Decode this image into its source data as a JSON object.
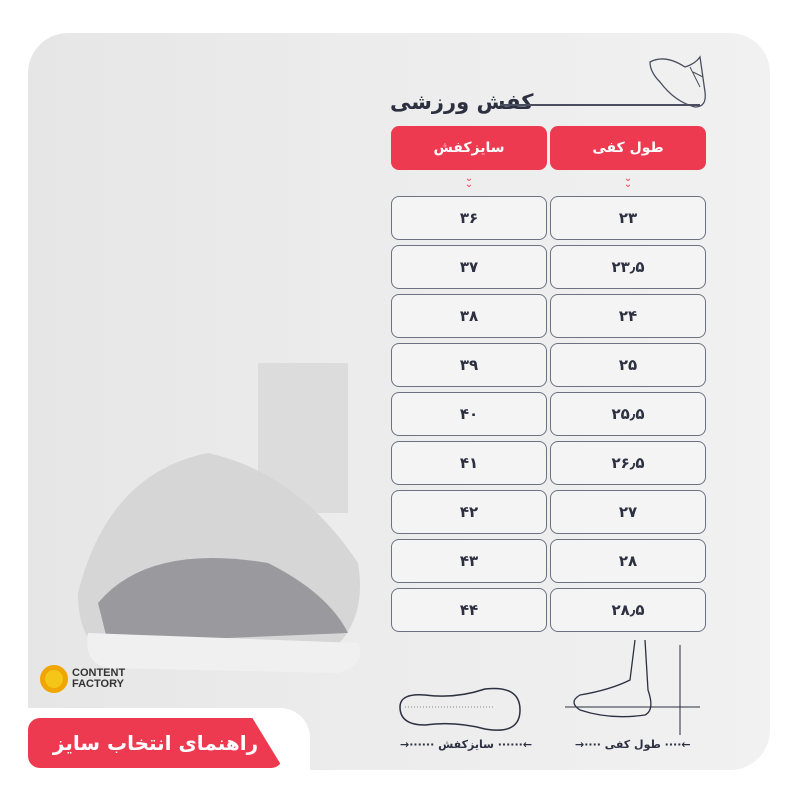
{
  "title": "کفش ورزشی",
  "headers": {
    "shoe_size": "سایزکفش",
    "foot_length": "طول کفی"
  },
  "rows": [
    {
      "size": "۳۶",
      "length": "۲۳"
    },
    {
      "size": "۳۷",
      "length": "۲۳٫۵"
    },
    {
      "size": "۳۸",
      "length": "۲۴"
    },
    {
      "size": "۳۹",
      "length": "۲۵"
    },
    {
      "size": "۴۰",
      "length": "۲۵٫۵"
    },
    {
      "size": "۴۱",
      "length": "۲۶٫۵"
    },
    {
      "size": "۴۲",
      "length": "۲۷"
    },
    {
      "size": "۴۳",
      "length": "۲۸"
    },
    {
      "size": "۴۴",
      "length": "۲۸٫۵"
    }
  ],
  "diagram": {
    "shoe_size_label": "سایزکفش",
    "foot_length_label": "طول کفی"
  },
  "banner": "راهنمای انتخاب سایز",
  "logo": {
    "line1": "CONTENT",
    "line2": "FACTORY"
  },
  "colors": {
    "accent": "#ee3a50",
    "text": "#2c3040"
  }
}
